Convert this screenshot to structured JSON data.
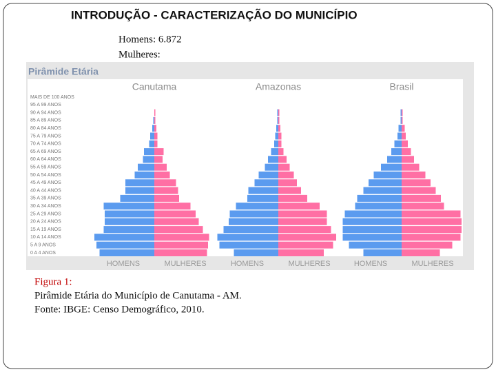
{
  "slide": {
    "title": "INTRODUÇÃO - CARACTERIZAÇÃO DO MUNICÍPIO",
    "stats": [
      "Homens: 6.872",
      "Mulheres:"
    ],
    "caption": [
      "Figura 1:",
      "Pirâmide Etária do Município de Canutama - AM.",
      "Fonte: IBGE: Censo Demográfico, 2010."
    ]
  },
  "chart_data": {
    "type": "pyramid",
    "title": "Pirâmide Etária",
    "xlim": [
      0,
      6
    ],
    "categories": [
      "MAIS DE 100 ANOS",
      "95 A 99 ANOS",
      "90 A 94 ANOS",
      "85 A 89 ANOS",
      "80 A 84 ANOS",
      "75 A 79 ANOS",
      "70 A 74 ANOS",
      "65 A 69 ANOS",
      "60 A 64 ANOS",
      "55 A 59 ANOS",
      "50 A 54 ANOS",
      "45 A 49 ANOS",
      "40 A 44 ANOS",
      "35 A 39 ANOS",
      "30 A 34 ANOS",
      "25 A 29 ANOS",
      "20 A 24 ANOS",
      "15 A 19 ANOS",
      "10 A 14 ANOS",
      "5 A 9 ANOS",
      "0 A 4 ANOS"
    ],
    "panels": [
      {
        "title": "Canutama",
        "series": [
          {
            "name": "HOMENS",
            "color": "#5b9bef",
            "values": [
              0,
              0,
              0,
              0.1,
              0.2,
              0.4,
              0.5,
              1.0,
              1.1,
              1.6,
              1.9,
              2.8,
              2.8,
              3.3,
              4.9,
              4.8,
              4.8,
              4.9,
              5.8,
              5.6,
              5.3
            ]
          },
          {
            "name": "MULHERES",
            "color": "#ff6fa4",
            "values": [
              0,
              0,
              0.1,
              0.1,
              0.2,
              0.3,
              0.3,
              0.9,
              0.8,
              1.2,
              1.5,
              2.1,
              2.3,
              2.4,
              3.5,
              4.0,
              4.3,
              4.7,
              5.3,
              5.2,
              5.1
            ]
          }
        ]
      },
      {
        "title": "Amazonas",
        "series": [
          {
            "name": "HOMENS",
            "color": "#5b9bef",
            "values": [
              0,
              0,
              0.1,
              0.1,
              0.2,
              0.3,
              0.4,
              0.7,
              1.0,
              1.3,
              1.9,
              2.3,
              2.9,
              3.0,
              4.1,
              4.7,
              4.8,
              5.3,
              5.9,
              5.7,
              4.3
            ]
          },
          {
            "name": "MULHERES",
            "color": "#ff6fa4",
            "values": [
              0,
              0,
              0.1,
              0.1,
              0.2,
              0.3,
              0.3,
              0.5,
              0.8,
              1.1,
              1.5,
              1.8,
              2.2,
              2.8,
              4.0,
              4.7,
              4.7,
              5.1,
              5.6,
              5.3,
              4.4
            ]
          }
        ]
      },
      {
        "title": "Brasil",
        "series": [
          {
            "name": "HOMENS",
            "color": "#5b9bef",
            "values": [
              0,
              0,
              0.1,
              0.1,
              0.3,
              0.4,
              0.7,
              1.0,
              1.4,
              2.0,
              2.7,
              3.2,
              3.7,
              4.3,
              4.5,
              5.5,
              5.7,
              5.7,
              5.7,
              5.1,
              3.7
            ]
          },
          {
            "name": "MULHERES",
            "color": "#ff6fa4",
            "values": [
              0,
              0,
              0.1,
              0.1,
              0.3,
              0.4,
              0.6,
              0.9,
              1.2,
              1.7,
              2.3,
              2.8,
              3.3,
              3.8,
              4.1,
              5.7,
              5.8,
              5.8,
              5.7,
              4.9,
              3.7
            ]
          }
        ]
      }
    ]
  }
}
